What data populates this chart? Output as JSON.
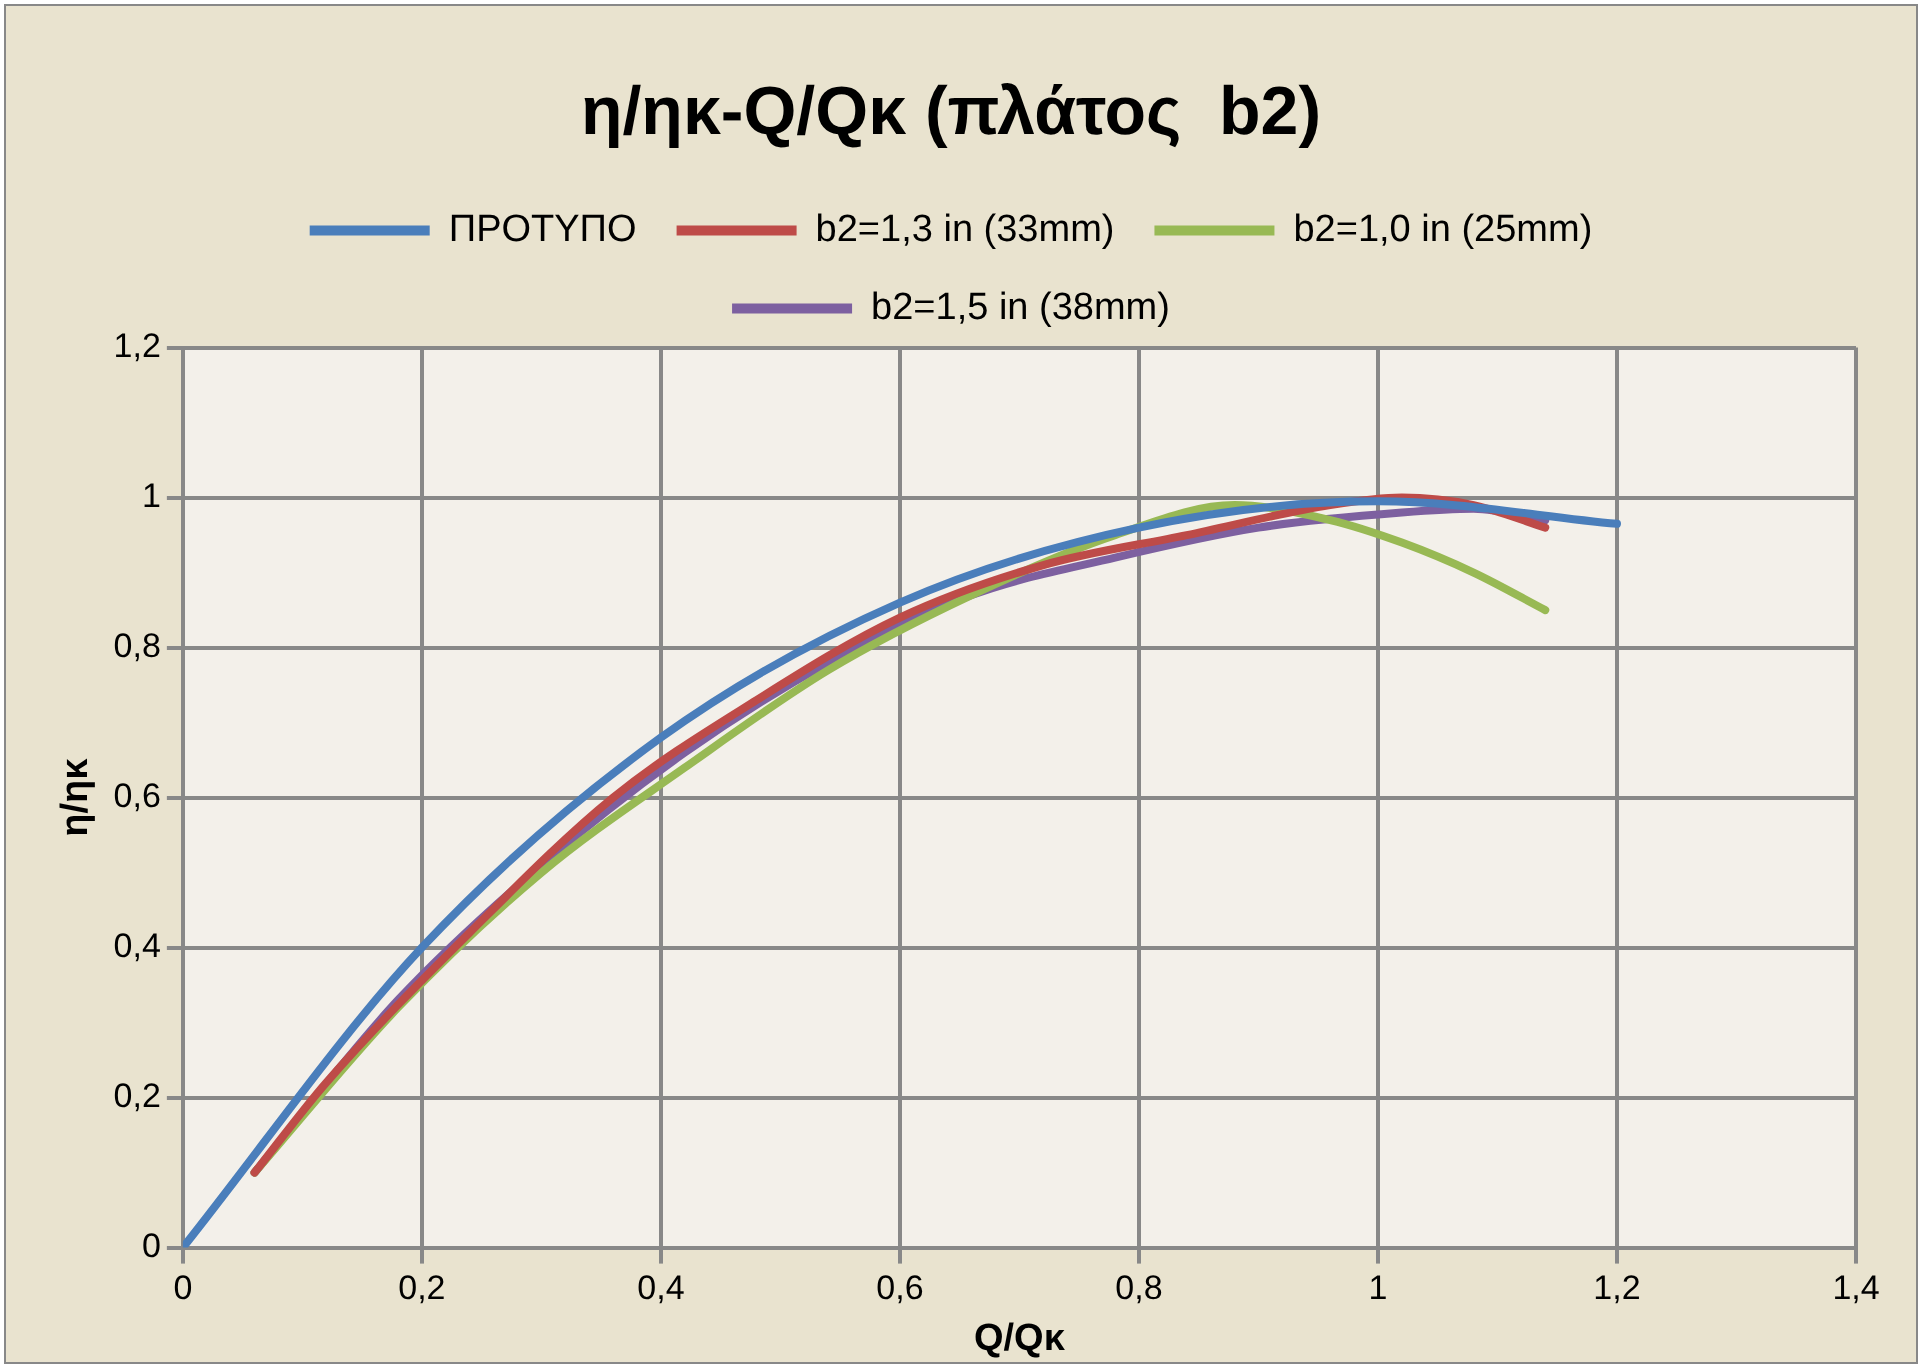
{
  "chart_data": {
    "type": "line",
    "title": "η/ηκ-Q/Qκ (πλάτος  b2)",
    "xlabel": "Q/Qκ",
    "ylabel": "η/ηκ",
    "xlim": [
      0,
      1.4
    ],
    "xticks": [
      {
        "value": 0,
        "label": "0"
      },
      {
        "value": 0.2,
        "label": "0,2"
      },
      {
        "value": 0.4,
        "label": "0,4"
      },
      {
        "value": 0.6,
        "label": "0,6"
      },
      {
        "value": 0.8,
        "label": "0,8"
      },
      {
        "value": 1,
        "label": "1"
      },
      {
        "value": 1.2,
        "label": "1,2"
      },
      {
        "value": 1.4,
        "label": "1,4"
      }
    ],
    "ylim": [
      0,
      1.2
    ],
    "yticks": [
      {
        "value": 0,
        "label": "0"
      },
      {
        "value": 0.2,
        "label": "0,2"
      },
      {
        "value": 0.4,
        "label": "0,4"
      },
      {
        "value": 0.6,
        "label": "0,6"
      },
      {
        "value": 0.8,
        "label": "0,8"
      },
      {
        "value": 1,
        "label": "1"
      },
      {
        "value": 1.2,
        "label": "1,2"
      }
    ],
    "grid": true,
    "legend": "top",
    "marker": "none",
    "line_style": "solid",
    "series": [
      {
        "name": "ΠΡΟΤΥΠΟ",
        "color": "#4a7ebb",
        "x": [
          0,
          0.2,
          0.4,
          0.6,
          0.8,
          1.0,
          1.2
        ],
        "values": [
          0,
          0.4,
          0.68,
          0.86,
          0.96,
          0.995,
          0.965
        ]
      },
      {
        "name": "b2=1,3 in (33mm)",
        "color": "#be4b48",
        "x": [
          0.06,
          0.12,
          0.24,
          0.36,
          0.48,
          0.6,
          0.72,
          0.84,
          0.96,
          1.02,
          1.08,
          1.14
        ],
        "values": [
          0.1,
          0.22,
          0.42,
          0.6,
          0.73,
          0.84,
          0.91,
          0.95,
          0.99,
          1.0,
          0.99,
          0.96
        ]
      },
      {
        "name": "b2=1,0 in (25mm)",
        "color": "#98b954",
        "x": [
          0.06,
          0.18,
          0.3,
          0.42,
          0.54,
          0.66,
          0.78,
          0.88,
          0.96,
          1.02,
          1.08,
          1.14
        ],
        "values": [
          0.1,
          0.32,
          0.5,
          0.64,
          0.77,
          0.87,
          0.95,
          0.99,
          0.97,
          0.94,
          0.9,
          0.85
        ]
      },
      {
        "name": "b2=1,5 in (38mm)",
        "color": "#7d60a0",
        "x": [
          0.06,
          0.18,
          0.3,
          0.42,
          0.54,
          0.66,
          0.78,
          0.9,
          1.02,
          1.08,
          1.14
        ],
        "values": [
          0.1,
          0.33,
          0.51,
          0.66,
          0.78,
          0.87,
          0.92,
          0.96,
          0.98,
          0.985,
          0.97
        ]
      }
    ]
  }
}
